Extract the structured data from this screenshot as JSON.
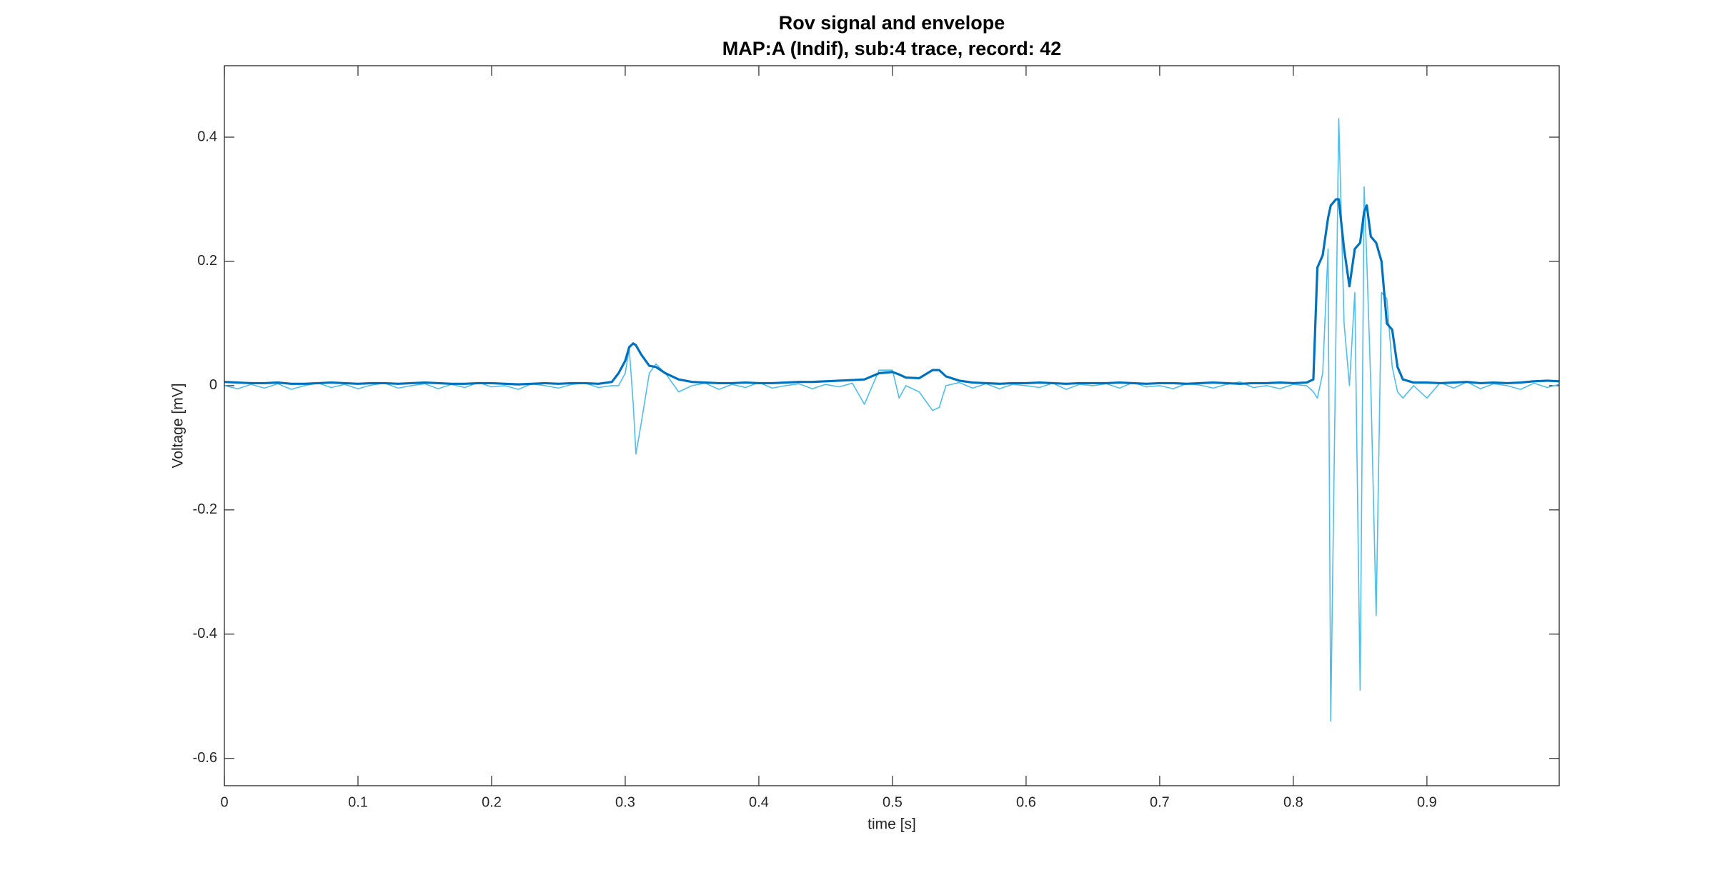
{
  "chart_data": {
    "type": "line",
    "title": "Rov signal and envelope",
    "subtitle": "MAP:A (Indif), sub:4 trace, record: 42",
    "x_label": "time [s]",
    "y_label": "Voltage [mV]",
    "xlim": [
      0,
      0.999
    ],
    "ylim": [
      -0.644,
      0.515
    ],
    "xticks": [
      0,
      0.1,
      0.2,
      0.3,
      0.4,
      0.5,
      0.6,
      0.7,
      0.8,
      0.9
    ],
    "yticks": [
      -0.6,
      -0.4,
      -0.2,
      0,
      0.2,
      0.4
    ],
    "box": true,
    "grid": false,
    "x": [
      0,
      0.01,
      0.02,
      0.03,
      0.04,
      0.05,
      0.06,
      0.07,
      0.08,
      0.09,
      0.1,
      0.11,
      0.12,
      0.13,
      0.14,
      0.15,
      0.16,
      0.17,
      0.18,
      0.19,
      0.2,
      0.21,
      0.22,
      0.23,
      0.24,
      0.25,
      0.26,
      0.27,
      0.28,
      0.29,
      0.295,
      0.3,
      0.303,
      0.306,
      0.308,
      0.312,
      0.318,
      0.323,
      0.33,
      0.34,
      0.35,
      0.36,
      0.37,
      0.38,
      0.39,
      0.4,
      0.41,
      0.42,
      0.43,
      0.44,
      0.45,
      0.46,
      0.47,
      0.479,
      0.49,
      0.5,
      0.505,
      0.51,
      0.52,
      0.53,
      0.535,
      0.54,
      0.55,
      0.56,
      0.57,
      0.58,
      0.59,
      0.6,
      0.61,
      0.62,
      0.63,
      0.64,
      0.65,
      0.66,
      0.67,
      0.68,
      0.69,
      0.7,
      0.71,
      0.72,
      0.73,
      0.74,
      0.75,
      0.76,
      0.77,
      0.78,
      0.79,
      0.8,
      0.81,
      0.815,
      0.818,
      0.822,
      0.826,
      0.828,
      0.832,
      0.834,
      0.838,
      0.842,
      0.846,
      0.85,
      0.853,
      0.855,
      0.858,
      0.862,
      0.866,
      0.87,
      0.874,
      0.878,
      0.882,
      0.89,
      0.9,
      0.91,
      0.92,
      0.93,
      0.94,
      0.95,
      0.96,
      0.97,
      0.98,
      0.99,
      0.999
    ],
    "series": [
      {
        "color": "#4DBEEE",
        "values": [
          0.0,
          -0.005,
          0.002,
          -0.004,
          0.003,
          -0.006,
          0.0,
          0.004,
          -0.003,
          0.002,
          -0.005,
          0.001,
          0.004,
          -0.004,
          0.0,
          0.003,
          -0.005,
          0.002,
          -0.003,
          0.005,
          -0.002,
          0.0,
          -0.006,
          0.003,
          0.0,
          -0.004,
          0.002,
          0.004,
          -0.003,
          0.0,
          0.0,
          0.02,
          0.06,
          -0.03,
          -0.11,
          -0.06,
          0.02,
          0.035,
          0.02,
          -0.01,
          0.0,
          0.004,
          -0.006,
          0.002,
          -0.003,
          0.005,
          -0.004,
          0.0,
          0.003,
          -0.005,
          0.002,
          -0.002,
          0.004,
          -0.03,
          0.025,
          0.025,
          -0.02,
          0.0,
          -0.01,
          -0.04,
          -0.035,
          0.0,
          0.005,
          -0.004,
          0.003,
          -0.005,
          0.002,
          0.0,
          -0.003,
          0.004,
          -0.006,
          0.002,
          0.0,
          0.003,
          -0.004,
          0.005,
          -0.002,
          0.0,
          -0.005,
          0.003,
          0.001,
          -0.004,
          0.002,
          0.006,
          -0.003,
          0.0,
          -0.005,
          0.002,
          0.0,
          -0.01,
          -0.02,
          0.02,
          0.22,
          -0.54,
          0.1,
          0.43,
          0.1,
          0.0,
          0.15,
          -0.49,
          0.32,
          0.2,
          0.0,
          -0.37,
          0.15,
          0.14,
          0.03,
          -0.01,
          -0.02,
          0.0,
          -0.02,
          0.005,
          -0.004,
          0.006,
          -0.005,
          0.003,
          0.0,
          -0.006,
          0.004,
          -0.003,
          0.002
        ]
      },
      {
        "color": "#0072BD",
        "values": [
          0.006,
          0.005,
          0.004,
          0.004,
          0.005,
          0.003,
          0.003,
          0.004,
          0.005,
          0.004,
          0.003,
          0.004,
          0.004,
          0.003,
          0.004,
          0.005,
          0.004,
          0.003,
          0.003,
          0.004,
          0.004,
          0.003,
          0.002,
          0.003,
          0.004,
          0.003,
          0.004,
          0.004,
          0.003,
          0.006,
          0.02,
          0.04,
          0.062,
          0.068,
          0.065,
          0.05,
          0.032,
          0.03,
          0.02,
          0.01,
          0.006,
          0.005,
          0.004,
          0.004,
          0.005,
          0.004,
          0.004,
          0.005,
          0.006,
          0.006,
          0.007,
          0.008,
          0.009,
          0.01,
          0.02,
          0.022,
          0.018,
          0.013,
          0.012,
          0.025,
          0.025,
          0.015,
          0.008,
          0.005,
          0.004,
          0.003,
          0.004,
          0.004,
          0.005,
          0.004,
          0.003,
          0.004,
          0.004,
          0.004,
          0.005,
          0.004,
          0.003,
          0.004,
          0.004,
          0.003,
          0.004,
          0.005,
          0.004,
          0.003,
          0.004,
          0.004,
          0.005,
          0.004,
          0.005,
          0.01,
          0.19,
          0.21,
          0.27,
          0.29,
          0.3,
          0.3,
          0.22,
          0.16,
          0.22,
          0.23,
          0.28,
          0.29,
          0.24,
          0.23,
          0.2,
          0.1,
          0.09,
          0.03,
          0.01,
          0.005,
          0.005,
          0.004,
          0.005,
          0.006,
          0.004,
          0.005,
          0.004,
          0.005,
          0.007,
          0.008,
          0.007
        ]
      }
    ]
  }
}
